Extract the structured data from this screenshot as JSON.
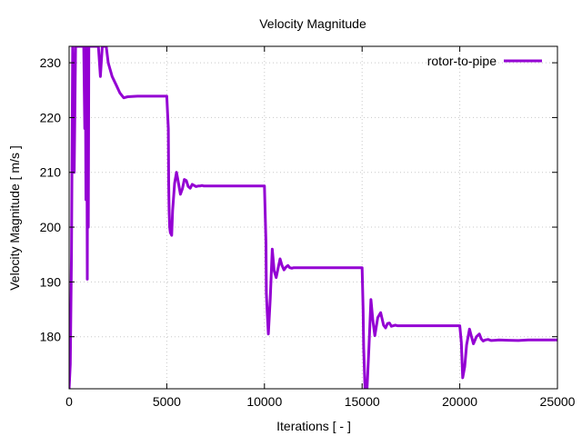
{
  "chart_data": {
    "type": "line",
    "title": "Velocity Magnitude",
    "xlabel": "Iterations [ - ]",
    "ylabel": "Velocity Magnitude [ m/s ]",
    "xlim": [
      0,
      25000
    ],
    "ylim": [
      170.5,
      233
    ],
    "xticks": [
      "0",
      "5000",
      "10000",
      "15000",
      "20000",
      "25000"
    ],
    "xtick_values": [
      0,
      5000,
      10000,
      15000,
      20000,
      25000
    ],
    "yticks": [
      "180",
      "190",
      "200",
      "210",
      "220",
      "230"
    ],
    "ytick_values": [
      180,
      190,
      200,
      210,
      220,
      230
    ],
    "grid": true,
    "legend_position": "top-right",
    "series": [
      {
        "name": "rotor-to-pipe",
        "color": "#9400d3",
        "x": [
          0,
          60,
          120,
          180,
          260,
          330,
          400,
          460,
          560,
          650,
          750,
          800,
          830,
          860,
          900,
          930,
          950,
          980,
          1010,
          1050,
          1090,
          1130,
          1200,
          1300,
          1400,
          1500,
          1600,
          1700,
          1800,
          1900,
          2000,
          2200,
          2400,
          2600,
          2800,
          3000,
          3500,
          4000,
          4500,
          5000,
          5080,
          5100,
          5120,
          5150,
          5180,
          5250,
          5300,
          5400,
          5500,
          5600,
          5700,
          5800,
          5900,
          6000,
          6100,
          6200,
          6300,
          6400,
          6500,
          6600,
          6700,
          6800,
          6900,
          7000,
          7500,
          8000,
          9000,
          10000,
          10080,
          10100,
          10150,
          10200,
          10300,
          10400,
          10500,
          10600,
          10700,
          10800,
          10900,
          11000,
          11100,
          11200,
          11300,
          11400,
          11500,
          11600,
          11700,
          11800,
          12000,
          12500,
          13000,
          14000,
          15000,
          15050,
          15080,
          15150,
          15250,
          15350,
          15450,
          15550,
          15650,
          15800,
          15950,
          16100,
          16200,
          16300,
          16400,
          16500,
          16600,
          16700,
          16800,
          17000,
          17500,
          18000,
          19000,
          20000,
          20080,
          20150,
          20250,
          20350,
          20500,
          20600,
          20700,
          20850,
          21000,
          21100,
          21200,
          21300,
          21450,
          21600,
          21800,
          22000,
          22500,
          23000,
          23500,
          24000,
          25000
        ],
        "y": [
          170.5,
          175,
          195,
          233,
          210,
          233,
          233,
          233,
          233,
          233,
          233,
          218,
          233,
          205,
          233,
          190.5,
          233,
          200,
          233,
          233,
          233,
          233,
          233,
          233,
          233,
          233,
          227.5,
          233,
          233,
          233,
          230,
          227.5,
          226,
          224.5,
          223.6,
          223.8,
          223.9,
          223.9,
          223.9,
          223.9,
          218,
          208,
          203,
          200,
          199,
          198.5,
          203,
          208,
          210,
          208,
          206,
          207,
          208.7,
          208.5,
          207.4,
          207.1,
          207.8,
          207.6,
          207.4,
          207.5,
          207.5,
          207.6,
          207.5,
          207.5,
          207.5,
          207.5,
          207.5,
          207.5,
          197,
          188,
          184,
          180.5,
          187,
          196,
          192,
          190.8,
          192.5,
          194.2,
          193,
          192.2,
          192.7,
          193,
          192.6,
          192.5,
          192.6,
          192.6,
          192.6,
          192.6,
          192.6,
          192.6,
          192.6,
          192.6,
          192.6,
          185,
          178,
          170.5,
          170.5,
          178,
          186.8,
          183,
          180.2,
          183.5,
          184.4,
          182.1,
          181.6,
          182.4,
          182.5,
          181.9,
          182,
          182.1,
          182,
          182,
          182,
          182,
          182,
          182,
          179,
          172.5,
          174.5,
          178.5,
          181.4,
          180,
          178.7,
          180,
          180.5,
          179.6,
          179.2,
          179.4,
          179.5,
          179.3,
          179.35,
          179.4,
          179.35,
          179.3,
          179.4,
          179.4,
          179.4
        ]
      }
    ]
  }
}
